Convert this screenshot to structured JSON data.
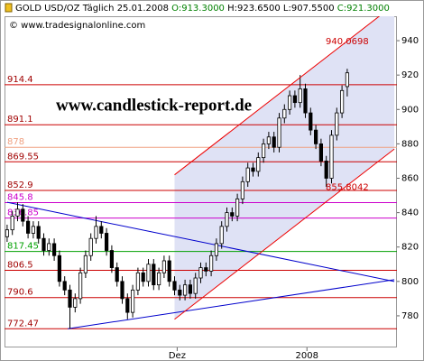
{
  "chart_data": {
    "type": "candlestick",
    "title": [
      "GOLD USD/OZ Täglich 25.01.2008",
      "O:913.3000",
      "H:923.6500",
      "L:907.5500",
      "C:921.3000"
    ],
    "title_colors": [
      "#000000",
      "#008000",
      "#000000",
      "#000000",
      "#008000"
    ],
    "subtitle": "© www.tradesignalonline.com",
    "watermark": "www.candlestick-report.de",
    "ylim": [
      761.6,
      954.2
    ],
    "yticks": [
      780,
      800,
      820,
      840,
      860,
      880,
      900,
      920,
      940
    ],
    "xlim": [
      -0.5,
      74.5
    ],
    "xticks": [
      {
        "value": 32.5,
        "label": "Dez"
      },
      {
        "value": 57.3,
        "label": "2008"
      }
    ],
    "candles": {
      "open": [
        826,
        830,
        838,
        842,
        835,
        828,
        832,
        825,
        818,
        822,
        815,
        800,
        795,
        785,
        790,
        805,
        815,
        825,
        832,
        828,
        818,
        808,
        800,
        790,
        782,
        795,
        805,
        800,
        810,
        798,
        805,
        812,
        800,
        795,
        792,
        798,
        793,
        802,
        808,
        806,
        815,
        822,
        832,
        840,
        838,
        848,
        858,
        866,
        864,
        872,
        880,
        884,
        878,
        895,
        900,
        908,
        904,
        912,
        898,
        888,
        880,
        870,
        860,
        885,
        898,
        913.3
      ],
      "high": [
        833,
        841,
        846,
        845,
        838,
        835,
        835,
        828,
        825,
        825,
        818,
        803,
        798,
        793,
        808,
        818,
        828,
        838,
        835,
        831,
        821,
        811,
        803,
        793,
        798,
        808,
        808,
        813,
        813,
        808,
        815,
        815,
        803,
        798,
        801,
        801,
        805,
        811,
        811,
        818,
        825,
        835,
        843,
        843,
        851,
        861,
        869,
        869,
        875,
        883,
        887,
        887,
        898,
        903,
        911,
        911,
        920,
        915,
        901,
        891,
        883,
        873,
        888,
        901,
        914,
        923.65
      ],
      "low": [
        823,
        827,
        835,
        832,
        825,
        825,
        822,
        815,
        815,
        812,
        797,
        792,
        772.5,
        782,
        787,
        802,
        812,
        822,
        825,
        815,
        805,
        797,
        787,
        778,
        779,
        792,
        797,
        797,
        795,
        795,
        802,
        797,
        792,
        789,
        789,
        790,
        790,
        799,
        803,
        803,
        812,
        819,
        829,
        835,
        835,
        845,
        855,
        861,
        861,
        869,
        877,
        875,
        875,
        892,
        897,
        901,
        901,
        895,
        885,
        877,
        867,
        855,
        857,
        882,
        895,
        907.55
      ],
      "close": [
        830,
        838,
        842,
        835,
        828,
        832,
        825,
        818,
        822,
        815,
        800,
        795,
        785,
        790,
        805,
        815,
        825,
        832,
        828,
        818,
        808,
        800,
        790,
        782,
        795,
        805,
        800,
        810,
        798,
        805,
        812,
        800,
        795,
        792,
        798,
        793,
        802,
        808,
        806,
        815,
        822,
        832,
        840,
        838,
        848,
        858,
        866,
        864,
        872,
        880,
        884,
        878,
        895,
        900,
        908,
        904,
        912,
        898,
        888,
        880,
        870,
        860,
        885,
        898,
        911,
        921.3
      ],
      "up_color": "#ffffff",
      "down_color": "#000000"
    },
    "levels": [
      {
        "value": 914.4,
        "color": "#cc0000"
      },
      {
        "value": 891.1,
        "color": "#cc0000"
      },
      {
        "value": 878,
        "color": "#f0a080"
      },
      {
        "value": 869.55,
        "color": "#cc0000"
      },
      {
        "value": 852.9,
        "color": "#cc0000"
      },
      {
        "value": 845.8,
        "color": "#cc00cc"
      },
      {
        "value": 836.85,
        "color": "#cc00cc"
      },
      {
        "value": 817.45,
        "color": "#00a000"
      },
      {
        "value": 806.5,
        "color": "#cc0000"
      },
      {
        "value": 790.6,
        "color": "#cc0000"
      },
      {
        "value": 772.47,
        "color": "#cc0000"
      }
    ],
    "channel": {
      "color": "#ee0000",
      "fill": "#dfe2f5",
      "upper": {
        "x": [
          32,
          74
        ],
        "y": [
          862,
          961
        ],
        "label": "940.0698",
        "label_at": [
          65,
          940.07
        ]
      },
      "lower": {
        "x": [
          32,
          74
        ],
        "y": [
          778,
          877
        ],
        "label": "855.8042",
        "label_at": [
          65,
          855.8
        ]
      }
    },
    "triangle": {
      "color": "#0000cc",
      "upper": {
        "x": [
          0,
          74
        ],
        "y": [
          846,
          800
        ]
      },
      "lower": {
        "x": [
          11.6,
          74
        ],
        "y": [
          772.5,
          801
        ]
      }
    }
  }
}
